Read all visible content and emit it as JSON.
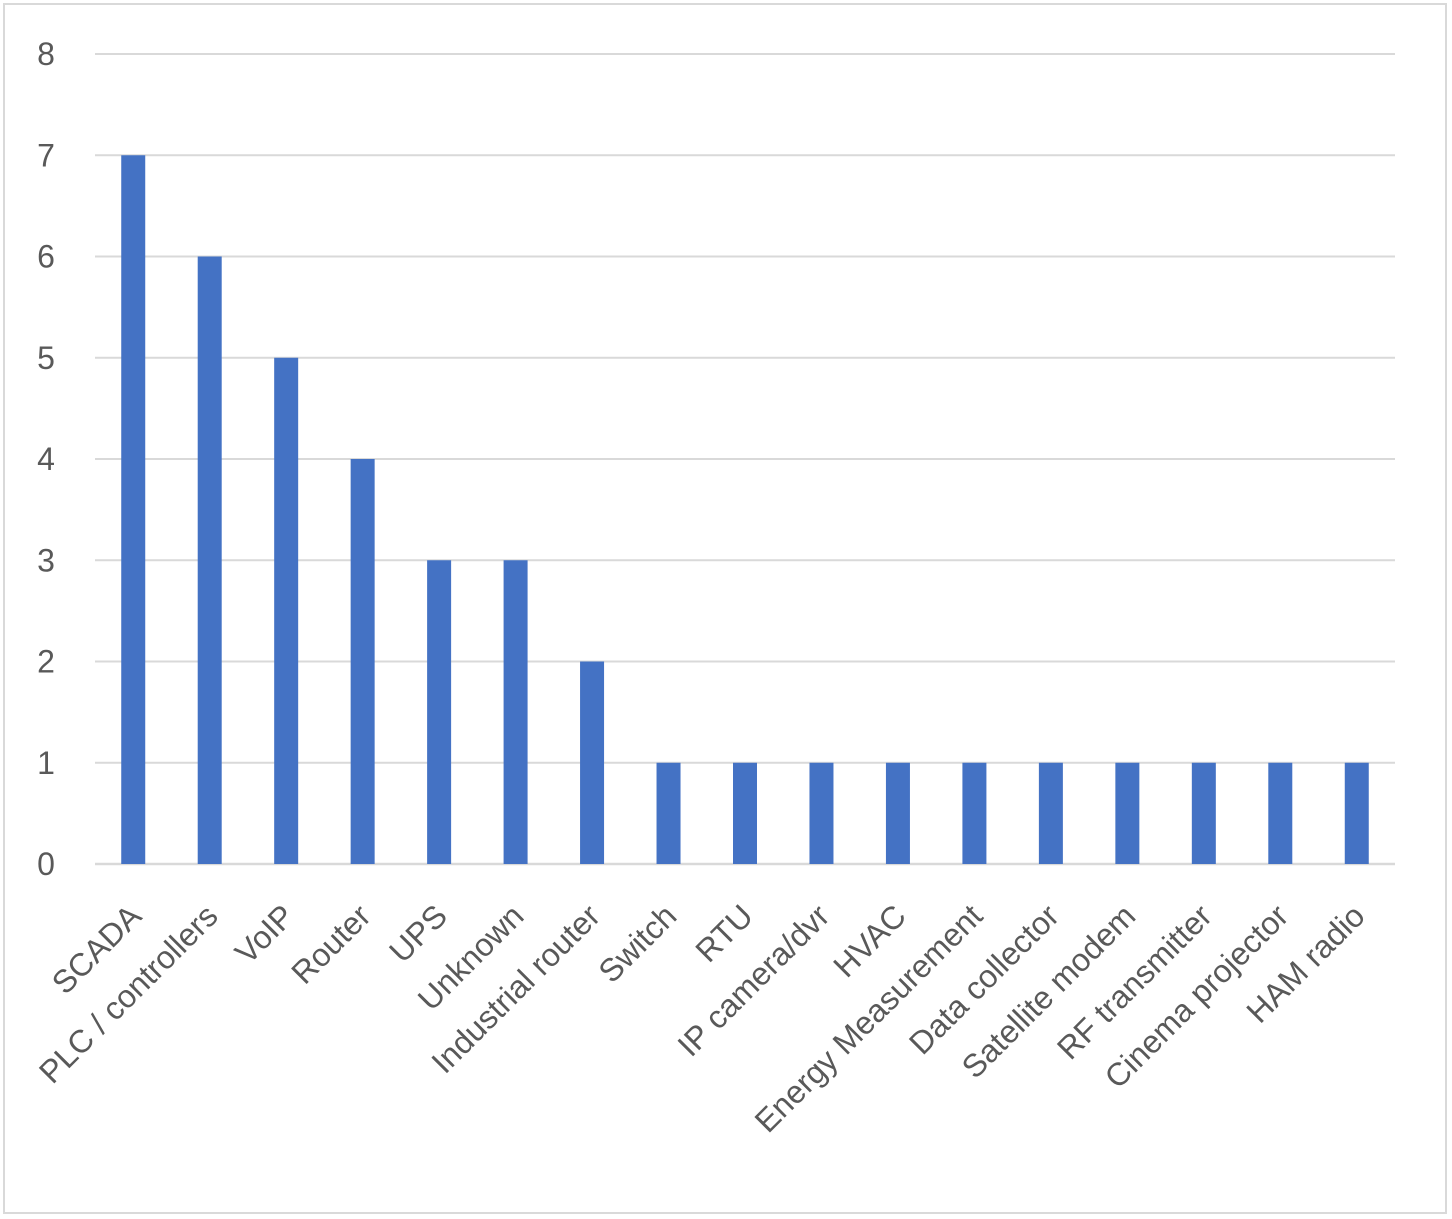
{
  "chart_data": {
    "type": "bar",
    "title": "",
    "xlabel": "",
    "ylabel": "",
    "categories": [
      "SCADA",
      "PLC / controllers",
      "VoIP",
      "Router",
      "UPS",
      "Unknown",
      "Industrial router",
      "Switch",
      "RTU",
      "IP camera/dvr",
      "HVAC",
      "Energy Measurement",
      "Data collector",
      "Satellite modem",
      "RF transmitter",
      "Cinema projector",
      "HAM radio"
    ],
    "values": [
      7,
      6,
      5,
      4,
      3,
      3,
      2,
      1,
      1,
      1,
      1,
      1,
      1,
      1,
      1,
      1,
      1
    ],
    "yticks": [
      "0",
      "1",
      "2",
      "3",
      "4",
      "5",
      "6",
      "7",
      "8"
    ],
    "ylim": [
      0,
      8
    ],
    "grid": true,
    "legend": "none",
    "colors": {
      "bar": "#4472c4",
      "grid": "#d9d9d9",
      "text": "#595959"
    }
  }
}
